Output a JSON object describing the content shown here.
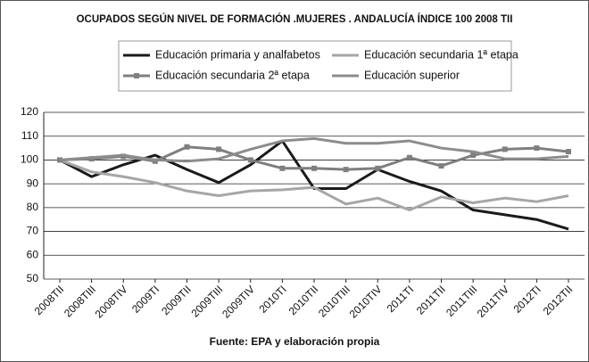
{
  "chart_data": {
    "type": "line",
    "title": "OCUPADOS SEGÚN NIVEL DE FORMACIÓN .MUJERES . ANDALUCÍA ÍNDICE 100 2008 TII",
    "source": "Fuente: EPA y elaboración propia",
    "categories": [
      "2008TII",
      "2008TIII",
      "2008TIV",
      "2009TI",
      "2009TII",
      "2009TIII",
      "2009TIV",
      "2010TI",
      "2010TII",
      "2010TIII",
      "2010TIV",
      "2011TI",
      "2011TII",
      "2011TIII",
      "2011TIV",
      "2012TI",
      "2012TII"
    ],
    "series": [
      {
        "name": "Educación primaria y analfabetos",
        "color": "#1a1a1a",
        "values": [
          100,
          93,
          98,
          102,
          96,
          90.5,
          98,
          108,
          88,
          88,
          96,
          91,
          87,
          79,
          77,
          75,
          71
        ]
      },
      {
        "name": "Educación secundaria 1ª etapa",
        "color": "#a6a6a6",
        "values": [
          100,
          95,
          93,
          90.5,
          87,
          85,
          87,
          87.5,
          88.5,
          81.5,
          84,
          79,
          84.5,
          82,
          84,
          82.5,
          85
        ]
      },
      {
        "name": "Educación secundaria 2ª etapa",
        "color": "#7f7f7f",
        "marker": "square",
        "values": [
          100,
          100.5,
          101.5,
          99.5,
          105.5,
          104.5,
          100,
          96.5,
          96.5,
          96,
          96.5,
          101,
          97.5,
          102,
          104.5,
          105,
          103.5
        ]
      },
      {
        "name": "Educación superior",
        "color": "#8c8c8c",
        "values": [
          100,
          101,
          102,
          100,
          99.5,
          100.5,
          104.5,
          108,
          109,
          107,
          107,
          108,
          105,
          103.5,
          100.5,
          100.5,
          101.5
        ]
      }
    ],
    "ylim": [
      50,
      120
    ],
    "yticks": [
      50,
      60,
      70,
      80,
      90,
      100,
      110,
      120
    ],
    "grid": true
  }
}
